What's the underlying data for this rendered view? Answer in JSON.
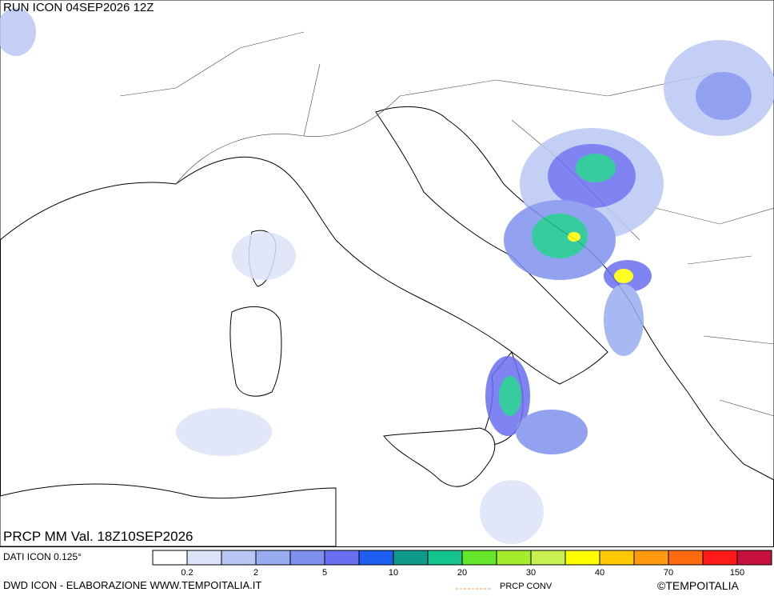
{
  "header": {
    "run": "RUN ICON 04SEP2026 12Z"
  },
  "map": {
    "label": "PRCP MM Val. 18Z10SEP2026"
  },
  "footer": {
    "model": "DATI ICON 0.125°",
    "credit": "DWD ICON - ELABORAZIONE WWW.TEMPOITALIA.IT",
    "conv": "PRCP CONV",
    "brand": "©TEMPOITALIA"
  },
  "legend": {
    "colors": [
      "#ffffff",
      "#dce3f8",
      "#b9c7f4",
      "#98acf0",
      "#7f91ee",
      "#6a6ef0",
      "#1e5ff0",
      "#0e9a8a",
      "#14c48c",
      "#66e62a",
      "#a4ec2c",
      "#c8f050",
      "#ffff00",
      "#ffc800",
      "#ff9a10",
      "#ff6a10",
      "#ff1a1a",
      "#c8103c"
    ],
    "labels": [
      "0.2",
      "2",
      "5",
      "10",
      "20",
      "30",
      "40",
      "70",
      "150"
    ]
  }
}
